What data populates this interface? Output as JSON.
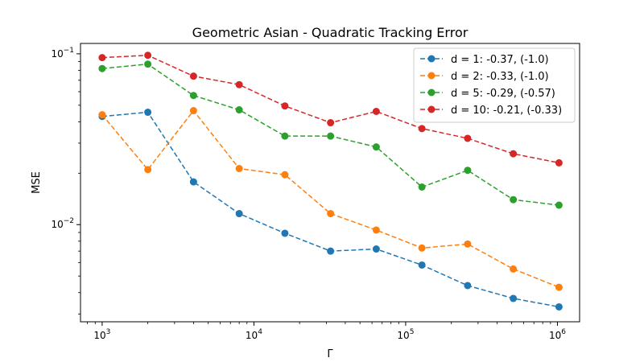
{
  "chart_data": {
    "type": "line",
    "title": "Geometric Asian - Quadratic Tracking Error",
    "xlabel": "Γ",
    "ylabel": "MSE",
    "xscale": "log",
    "yscale": "log",
    "xlim": [
      720,
      1400000
    ],
    "ylim": [
      0.0027,
      0.115
    ],
    "x": [
      1000,
      2000,
      4000,
      8000,
      16000,
      32000,
      64000,
      128000,
      256000,
      512000,
      1024000
    ],
    "x_ticks": [
      {
        "value": 1000,
        "base": "10",
        "exp": "3"
      },
      {
        "value": 10000,
        "base": "10",
        "exp": "4"
      },
      {
        "value": 100000,
        "base": "10",
        "exp": "5"
      },
      {
        "value": 1000000,
        "base": "10",
        "exp": "6"
      }
    ],
    "y_ticks": [
      {
        "value": 0.01,
        "base": "10",
        "exp": "−2"
      },
      {
        "value": 0.1,
        "base": "10",
        "exp": "−1"
      }
    ],
    "legend_position": "top-right",
    "line_style": "dashed",
    "marker": "circle",
    "series": [
      {
        "name": "d = 1: -0.37, (-1.0)",
        "color": "#1f77b4",
        "values": [
          0.043,
          0.0455,
          0.0178,
          0.0116,
          0.0089,
          0.007,
          0.0072,
          0.0058,
          0.0044,
          0.0037,
          0.0033
        ]
      },
      {
        "name": "d = 2: -0.33, (-1.0)",
        "color": "#ff7f0e",
        "values": [
          0.044,
          0.021,
          0.0465,
          0.0213,
          0.0196,
          0.0116,
          0.0093,
          0.0073,
          0.0077,
          0.0055,
          0.0043
        ]
      },
      {
        "name": "d = 5: -0.29, (-0.57)",
        "color": "#2ca02c",
        "values": [
          0.082,
          0.087,
          0.057,
          0.047,
          0.033,
          0.033,
          0.0285,
          0.0166,
          0.0208,
          0.014,
          0.013
        ]
      },
      {
        "name": "d = 10: -0.21, (-0.33)",
        "color": "#d62728",
        "values": [
          0.095,
          0.098,
          0.074,
          0.066,
          0.0495,
          0.0395,
          0.046,
          0.0365,
          0.032,
          0.026,
          0.023
        ]
      }
    ]
  }
}
